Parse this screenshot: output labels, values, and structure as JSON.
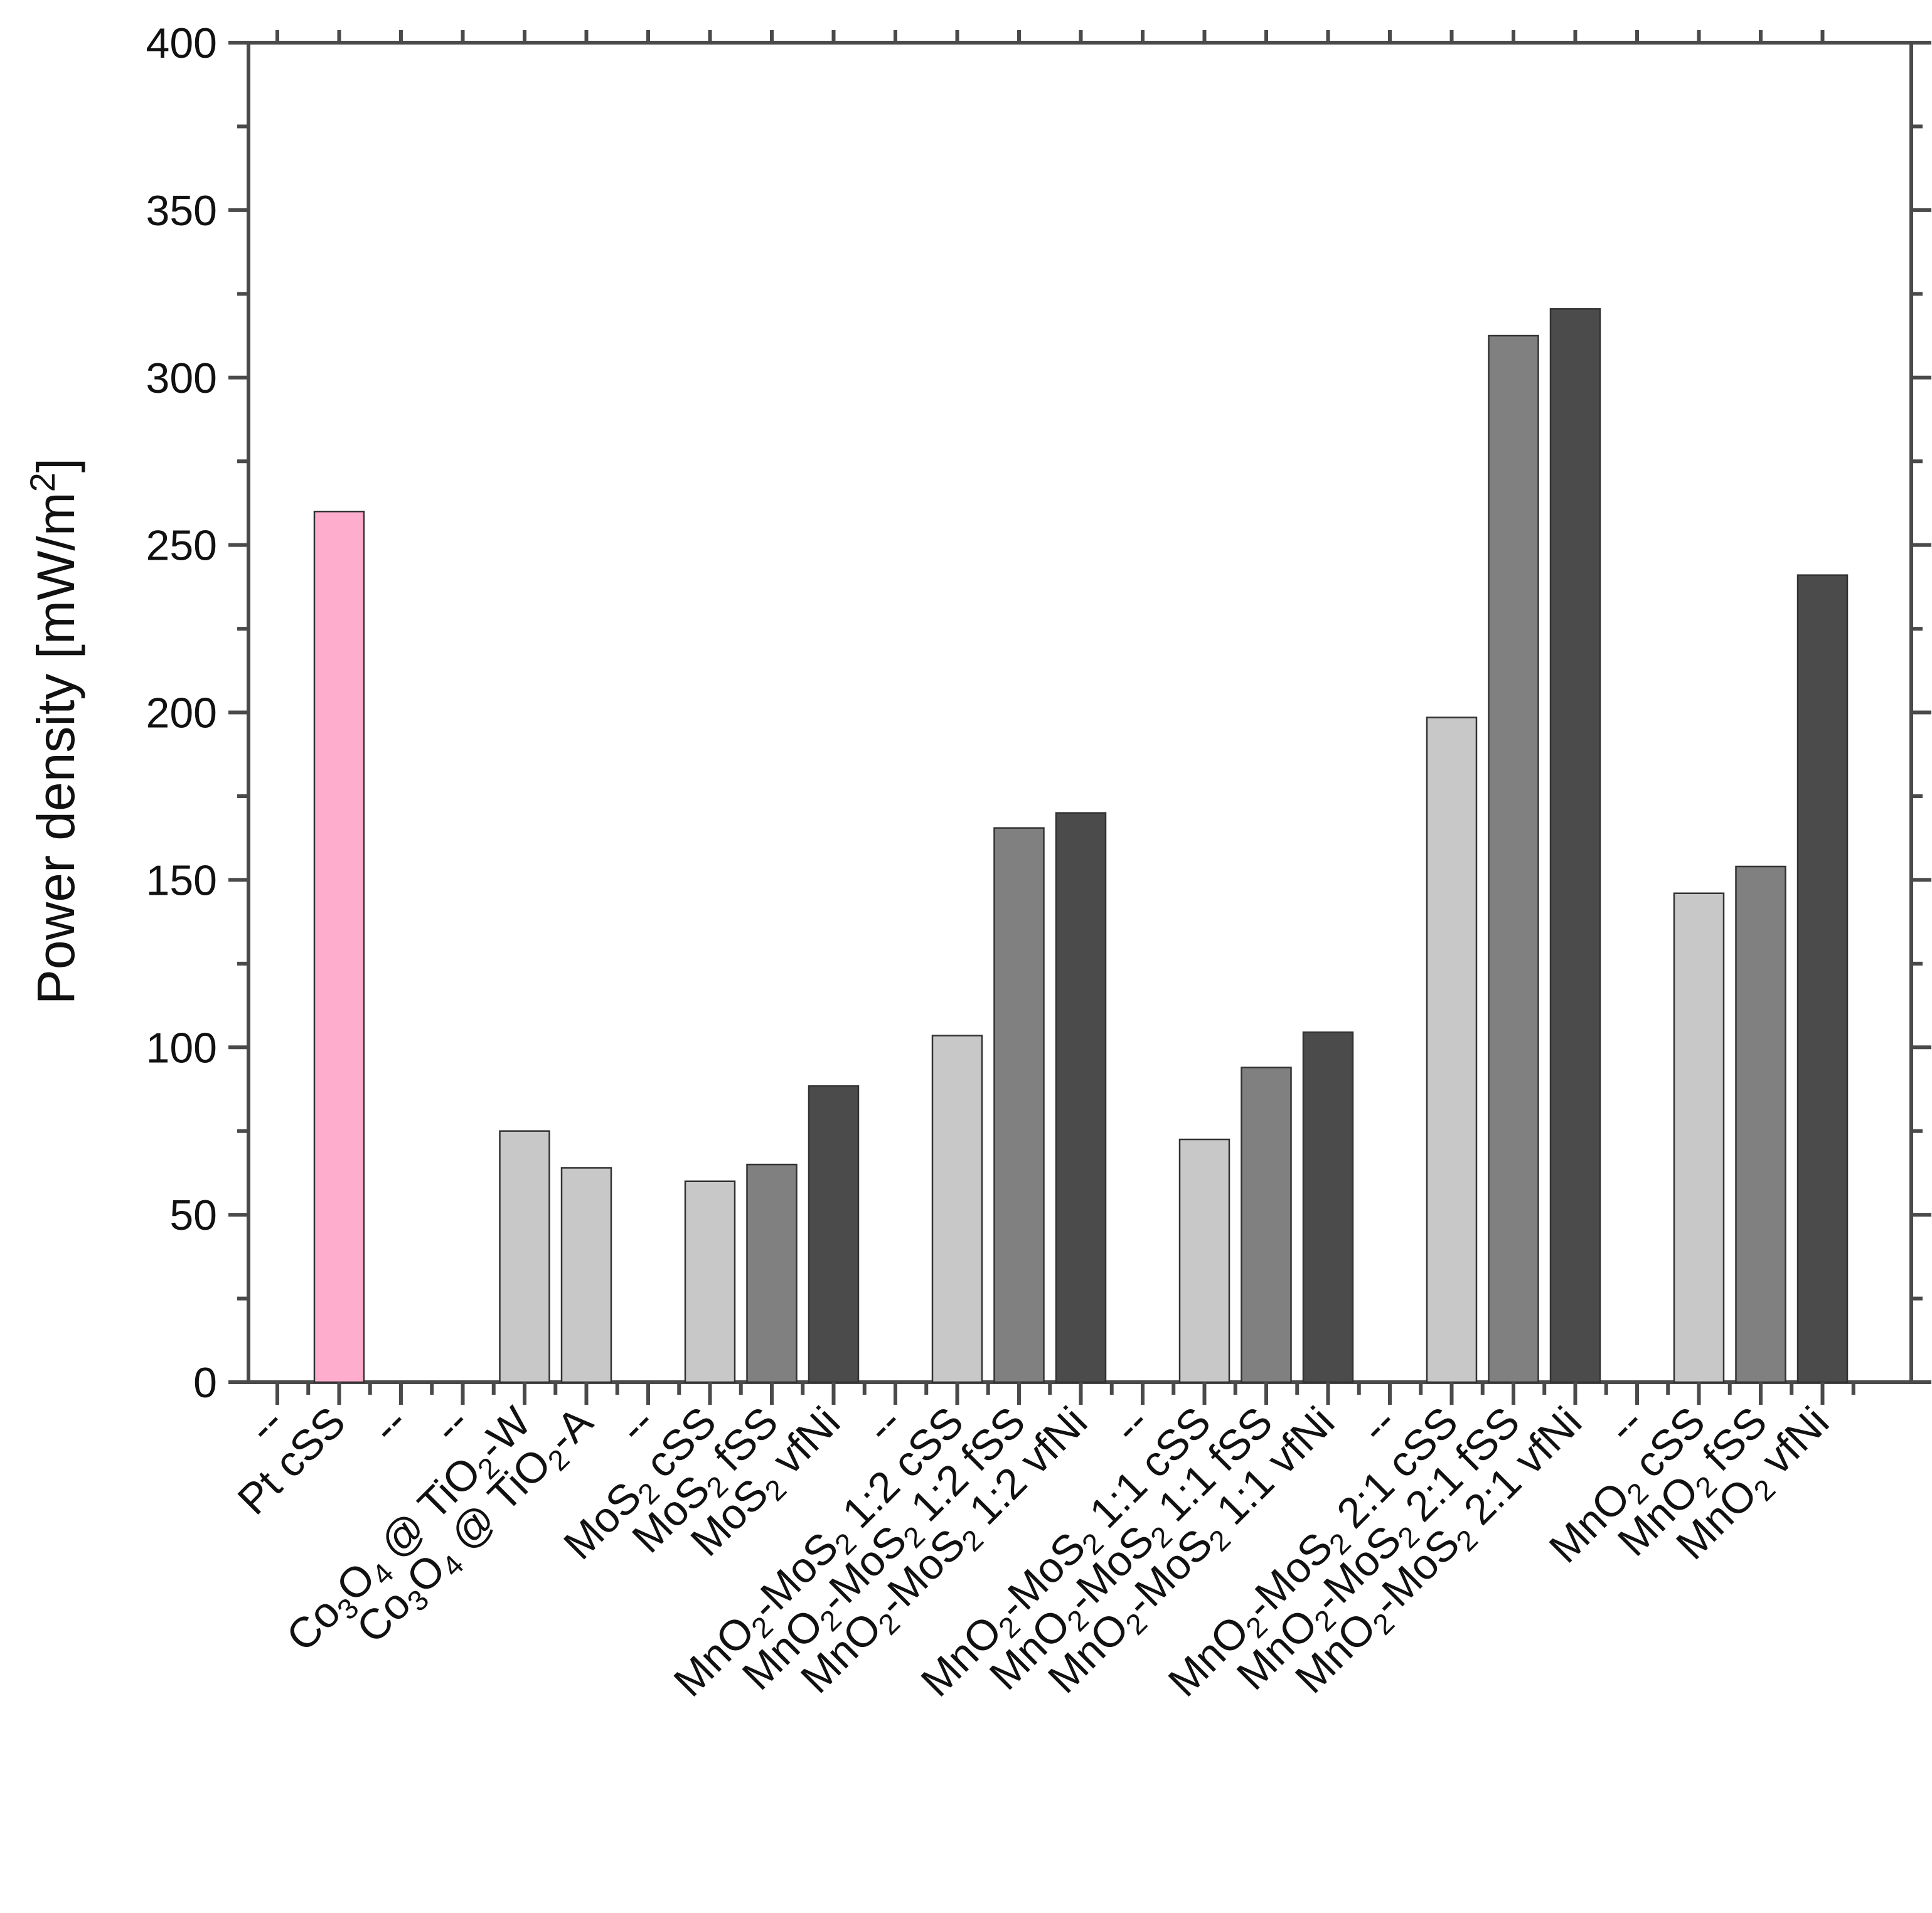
{
  "chart_data": {
    "type": "bar",
    "title": "",
    "xlabel": "",
    "ylabel": "Power density [mW/m2]",
    "ylabel_parts": [
      {
        "text": "Power density [mW/m"
      },
      {
        "text": "2",
        "sup": true
      },
      {
        "text": "]"
      }
    ],
    "ylim": [
      0,
      400
    ],
    "yticks": [
      "0",
      "50",
      "100",
      "150",
      "200",
      "250",
      "300",
      "350",
      "400"
    ],
    "colors": {
      "pink": "#ffadcc",
      "light": "#c8c8c8",
      "mid": "#808080",
      "dark": "#4b4b4b",
      "axis": "#4a4a4a"
    },
    "bars": [
      {
        "label": "--",
        "label_parts": [
          {
            "text": "--"
          }
        ],
        "value": null,
        "color": ""
      },
      {
        "label": "Pt cSS",
        "label_parts": [
          {
            "text": "Pt cSS"
          }
        ],
        "value": 260,
        "color": "#ffadcc"
      },
      {
        "label": "--",
        "label_parts": [
          {
            "text": "--"
          }
        ],
        "value": null,
        "color": ""
      },
      {
        "label": "--",
        "label_parts": [
          {
            "text": "--"
          }
        ],
        "value": null,
        "color": ""
      },
      {
        "label": "Co3O4 @ TiO2-W",
        "label_parts": [
          {
            "text": "Co"
          },
          {
            "text": "3",
            "sub": true
          },
          {
            "text": "O"
          },
          {
            "text": "4",
            "sub": true
          },
          {
            "text": " @ TiO"
          },
          {
            "text": "2",
            "sub": true
          },
          {
            "text": "-W"
          }
        ],
        "value": 75,
        "color": "#c8c8c8"
      },
      {
        "label": "Co3O4 @ TiO2-A",
        "label_parts": [
          {
            "text": "Co"
          },
          {
            "text": "3",
            "sub": true
          },
          {
            "text": "O"
          },
          {
            "text": "4",
            "sub": true
          },
          {
            "text": " @ TiO"
          },
          {
            "text": "2",
            "sub": true
          },
          {
            "text": "-A"
          }
        ],
        "value": 64,
        "color": "#c8c8c8"
      },
      {
        "label": "--",
        "label_parts": [
          {
            "text": "--"
          }
        ],
        "value": null,
        "color": ""
      },
      {
        "label": "MoS2 cSS",
        "label_parts": [
          {
            "text": "MoS"
          },
          {
            "text": "2",
            "sub": true
          },
          {
            "text": " cSS"
          }
        ],
        "value": 60,
        "color": "#c8c8c8"
      },
      {
        "label": "MoS2 fSS",
        "label_parts": [
          {
            "text": "MoS"
          },
          {
            "text": "2",
            "sub": true
          },
          {
            "text": " fSS"
          }
        ],
        "value": 65,
        "color": "#808080"
      },
      {
        "label": "MoS2 vfNi",
        "label_parts": [
          {
            "text": "MoS"
          },
          {
            "text": "2",
            "sub": true
          },
          {
            "text": " vfNi"
          }
        ],
        "value": 88.5,
        "color": "#4b4b4b"
      },
      {
        "label": "--",
        "label_parts": [
          {
            "text": "--"
          }
        ],
        "value": null,
        "color": ""
      },
      {
        "label": "MnO2-MoS2 1:2 cSS",
        "label_parts": [
          {
            "text": "MnO"
          },
          {
            "text": "2",
            "sub": true
          },
          {
            "text": "-MoS"
          },
          {
            "text": "2",
            "sub": true
          },
          {
            "text": " 1:2 cSS"
          }
        ],
        "value": 103.5,
        "color": "#c8c8c8"
      },
      {
        "label": "MnO2-MoS2 1:2 fSS",
        "label_parts": [
          {
            "text": "MnO"
          },
          {
            "text": "2",
            "sub": true
          },
          {
            "text": "-MoS"
          },
          {
            "text": "2",
            "sub": true
          },
          {
            "text": " 1:2 fSS"
          }
        ],
        "value": 165.5,
        "color": "#808080"
      },
      {
        "label": "MnO2-MoS2 1:2 vfNi",
        "label_parts": [
          {
            "text": "MnO"
          },
          {
            "text": "2",
            "sub": true
          },
          {
            "text": "-MoS"
          },
          {
            "text": "2",
            "sub": true
          },
          {
            "text": " 1:2 vfNi"
          }
        ],
        "value": 170,
        "color": "#4b4b4b"
      },
      {
        "label": "--",
        "label_parts": [
          {
            "text": "--"
          }
        ],
        "value": null,
        "color": ""
      },
      {
        "label": "MnO2-MoS2 1:1 cSS",
        "label_parts": [
          {
            "text": "MnO"
          },
          {
            "text": "2",
            "sub": true
          },
          {
            "text": "-MoS"
          },
          {
            "text": "2",
            "sub": true
          },
          {
            "text": " 1:1 cSS"
          }
        ],
        "value": 72.5,
        "color": "#c8c8c8"
      },
      {
        "label": "MnO2-MoS2 1:1 fSS",
        "label_parts": [
          {
            "text": "MnO"
          },
          {
            "text": "2",
            "sub": true
          },
          {
            "text": "-MoS"
          },
          {
            "text": "2",
            "sub": true
          },
          {
            "text": " 1:1 fSS"
          }
        ],
        "value": 94,
        "color": "#808080"
      },
      {
        "label": "MnO2-MoS2 1:1 vfNi",
        "label_parts": [
          {
            "text": "MnO"
          },
          {
            "text": "2",
            "sub": true
          },
          {
            "text": "-MoS"
          },
          {
            "text": "2",
            "sub": true
          },
          {
            "text": " 1:1 vfNi"
          }
        ],
        "value": 104.5,
        "color": "#4b4b4b"
      },
      {
        "label": "--",
        "label_parts": [
          {
            "text": "--"
          }
        ],
        "value": null,
        "color": ""
      },
      {
        "label": "MnO2-MoS2 2:1 cSS",
        "label_parts": [
          {
            "text": "MnO"
          },
          {
            "text": "2",
            "sub": true
          },
          {
            "text": "-MoS"
          },
          {
            "text": "2",
            "sub": true
          },
          {
            "text": " 2:1 cSS"
          }
        ],
        "value": 198.5,
        "color": "#c8c8c8"
      },
      {
        "label": "MnO2-MoS2 2:1 fSS",
        "label_parts": [
          {
            "text": "MnO"
          },
          {
            "text": "2",
            "sub": true
          },
          {
            "text": "-MoS"
          },
          {
            "text": "2",
            "sub": true
          },
          {
            "text": " 2:1 fSS"
          }
        ],
        "value": 312.5,
        "color": "#808080"
      },
      {
        "label": "MnO2-MoS2 2:1 vfNi",
        "label_parts": [
          {
            "text": "MnO"
          },
          {
            "text": "2",
            "sub": true
          },
          {
            "text": "-MoS"
          },
          {
            "text": "2",
            "sub": true
          },
          {
            "text": " 2:1 vfNi"
          }
        ],
        "value": 320.5,
        "color": "#4b4b4b"
      },
      {
        "label": "--",
        "label_parts": [
          {
            "text": "--"
          }
        ],
        "value": null,
        "color": ""
      },
      {
        "label": "MnO2 cSS",
        "label_parts": [
          {
            "text": "MnO"
          },
          {
            "text": "2",
            "sub": true
          },
          {
            "text": " cSS"
          }
        ],
        "value": 146,
        "color": "#c8c8c8"
      },
      {
        "label": "MnO2 fSS",
        "label_parts": [
          {
            "text": "MnO"
          },
          {
            "text": "2",
            "sub": true
          },
          {
            "text": " fSS"
          }
        ],
        "value": 154,
        "color": "#808080"
      },
      {
        "label": "MnO2 vfNi",
        "label_parts": [
          {
            "text": "MnO"
          },
          {
            "text": "2",
            "sub": true
          },
          {
            "text": " vfNi"
          }
        ],
        "value": 241,
        "color": "#4b4b4b"
      }
    ]
  }
}
